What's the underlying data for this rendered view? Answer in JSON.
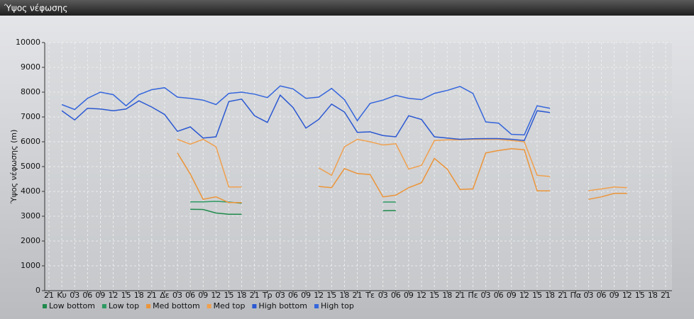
{
  "chart_data": {
    "type": "line",
    "title": "Ύψος νέφωσης",
    "y_label": "Ύψος νέφωσης (m)",
    "categories": [
      "21",
      "Κυ",
      "03",
      "06",
      "09",
      "12",
      "15",
      "18",
      "21",
      "Δε",
      "03",
      "06",
      "09",
      "12",
      "15",
      "18",
      "21",
      "Τρ",
      "03",
      "06",
      "09",
      "12",
      "15",
      "18",
      "21",
      "Τε",
      "03",
      "06",
      "09",
      "12",
      "15",
      "18",
      "21",
      "Πε",
      "03",
      "06",
      "09",
      "12",
      "15",
      "18",
      "21",
      "Πα",
      "03",
      "06",
      "09",
      "12",
      "15",
      "18",
      "21"
    ],
    "ylim": [
      0,
      10000
    ],
    "yticks": [
      0,
      1000,
      2000,
      3000,
      4000,
      5000,
      6000,
      7000,
      8000,
      9000,
      10000
    ],
    "grid": true,
    "series": [
      {
        "name": "Low bottom",
        "color": "#1f8a4c",
        "values": [
          null,
          null,
          null,
          null,
          null,
          null,
          null,
          null,
          null,
          null,
          null,
          3280,
          3270,
          3130,
          3080,
          3080,
          null,
          null,
          null,
          null,
          null,
          null,
          null,
          null,
          null,
          null,
          3220,
          3230,
          null,
          null,
          null,
          null,
          null,
          null,
          null,
          null,
          null,
          null,
          null,
          null,
          null,
          null,
          null,
          null,
          null,
          null,
          null,
          null,
          null
        ]
      },
      {
        "name": "Low top",
        "color": "#2d9a62",
        "values": [
          null,
          null,
          null,
          null,
          null,
          null,
          null,
          null,
          null,
          null,
          null,
          3580,
          3580,
          3600,
          3570,
          3520,
          null,
          null,
          null,
          null,
          null,
          null,
          null,
          null,
          null,
          null,
          3570,
          3570,
          null,
          null,
          null,
          null,
          null,
          null,
          null,
          null,
          null,
          null,
          null,
          null,
          null,
          null,
          null,
          null,
          null,
          null,
          null,
          null,
          null
        ]
      },
      {
        "name": "Med bottom",
        "color": "#ec9438",
        "values": [
          null,
          null,
          null,
          null,
          null,
          null,
          null,
          null,
          null,
          null,
          5550,
          4700,
          3680,
          3780,
          3550,
          3550,
          null,
          null,
          null,
          null,
          null,
          4200,
          4150,
          4920,
          4720,
          4680,
          3780,
          3850,
          4150,
          4350,
          5330,
          4900,
          4080,
          4100,
          5550,
          5650,
          5720,
          5680,
          4020,
          4020,
          null,
          null,
          3680,
          3780,
          3920,
          3920,
          null,
          null,
          null
        ]
      },
      {
        "name": "Med top",
        "color": "#f0a04e",
        "values": [
          null,
          null,
          null,
          null,
          null,
          null,
          null,
          null,
          null,
          null,
          6100,
          5900,
          6100,
          5800,
          4180,
          4180,
          null,
          null,
          null,
          null,
          null,
          4950,
          4650,
          5800,
          6100,
          6000,
          5870,
          5920,
          4900,
          5050,
          6050,
          6080,
          6080,
          6100,
          6100,
          6100,
          6050,
          6000,
          4650,
          4600,
          null,
          null,
          4030,
          4100,
          4180,
          4150,
          null,
          null,
          null
        ]
      },
      {
        "name": "High bottom",
        "color": "#2b58d2",
        "values": [
          null,
          7250,
          6880,
          7350,
          7320,
          7250,
          7320,
          7650,
          7400,
          7100,
          6420,
          6600,
          6150,
          6200,
          7620,
          7720,
          7050,
          6780,
          7880,
          7380,
          6550,
          6900,
          7520,
          7200,
          6380,
          6400,
          6250,
          6200,
          7050,
          6900,
          6200,
          6150,
          6100,
          6120,
          6130,
          6130,
          6100,
          6050,
          7250,
          7180,
          null,
          null,
          null,
          null,
          null,
          null,
          null,
          null,
          null
        ]
      },
      {
        "name": "High top",
        "color": "#3566dc",
        "values": [
          null,
          7500,
          7300,
          7750,
          8000,
          7900,
          7450,
          7900,
          8100,
          8180,
          7800,
          7750,
          7680,
          7500,
          7950,
          8000,
          7920,
          7780,
          8250,
          8130,
          7750,
          7800,
          8150,
          7700,
          6850,
          7550,
          7680,
          7870,
          7750,
          7700,
          7950,
          8070,
          8230,
          7950,
          6800,
          6750,
          6300,
          6280,
          7450,
          7350,
          null,
          null,
          null,
          null,
          null,
          null,
          null,
          null,
          null
        ]
      }
    ]
  }
}
